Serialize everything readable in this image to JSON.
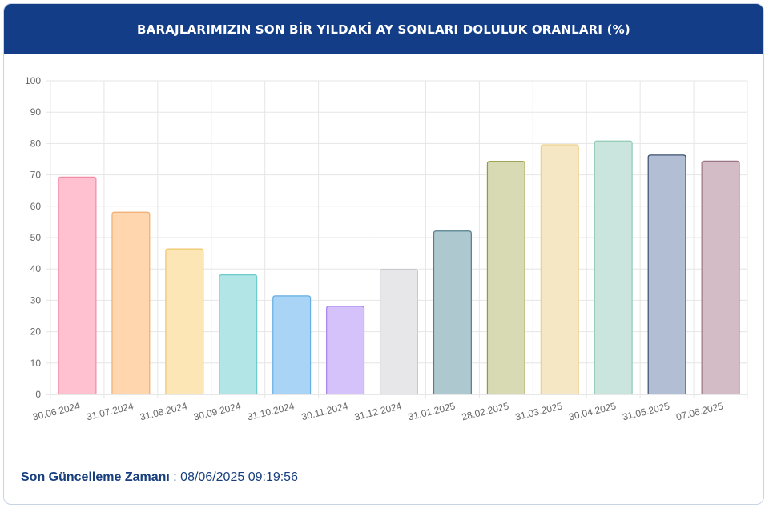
{
  "header": {
    "title": "BARAJLARIMIZIN SON BİR YILDAKİ AY SONLARI DOLULUK ORANLARI (%)"
  },
  "chart_data": {
    "type": "bar",
    "title": "BARAJLARIMIZIN SON BİR YILDAKİ AY SONLARI DOLULUK ORANLARI (%)",
    "categories": [
      "30.06.2024",
      "31.07.2024",
      "31.08.2024",
      "30.09.2024",
      "31.10.2024",
      "30.11.2024",
      "31.12.2024",
      "31.01.2025",
      "28.02.2025",
      "31.03.2025",
      "30.04.2025",
      "31.05.2025",
      "07.06.2025"
    ],
    "values": [
      69.3,
      58.1,
      46.4,
      38.1,
      31.4,
      28.1,
      39.9,
      52.1,
      74.3,
      79.6,
      80.8,
      76.3,
      74.4
    ],
    "ylim": [
      0,
      100
    ],
    "yticks": [
      0,
      10,
      20,
      30,
      40,
      50,
      60,
      70,
      80,
      90,
      100
    ],
    "grid": true,
    "legend": "none",
    "fills": [
      "#ffc1cf",
      "#ffd6ad",
      "#fde6b5",
      "#b2e6e6",
      "#a9d4f6",
      "#d6c2fb",
      "#e7e7ea",
      "#adc8cf",
      "#d7dab2",
      "#f6e7c4",
      "#c9e5dd",
      "#b2bed4",
      "#d3bcc6"
    ],
    "strokes": [
      "#f38ba5",
      "#f0ad73",
      "#eec66a",
      "#6dcaca",
      "#64aee2",
      "#a782ee",
      "#c9c9cd",
      "#527f89",
      "#94993f",
      "#ecd08a",
      "#8fcbb4",
      "#3c4d6e",
      "#9e7586"
    ]
  },
  "footer": {
    "label": "Son Güncelleme Zamanı",
    "value": ": 08/06/2025 09:19:56"
  }
}
